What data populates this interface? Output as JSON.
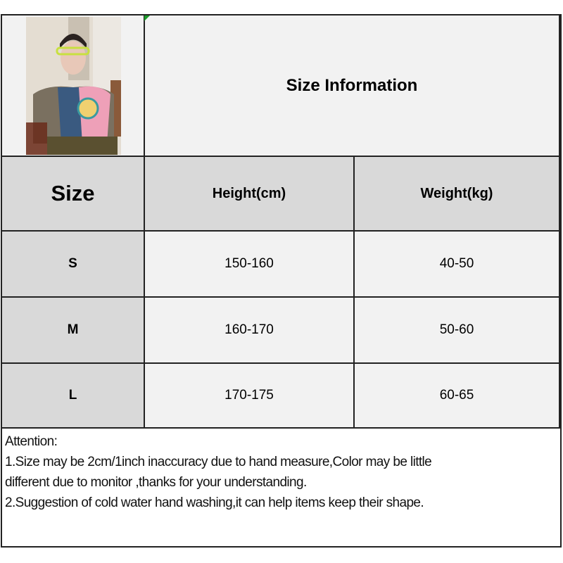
{
  "header": {
    "title": "Size Information",
    "photo_alt": "model wearing patchwork t-shirt"
  },
  "columns": [
    "Size",
    "Height(cm)",
    "Weight(kg)"
  ],
  "rows": [
    {
      "size": "S",
      "height": "150-160",
      "weight": "40-50"
    },
    {
      "size": "M",
      "height": "160-170",
      "weight": "50-60"
    },
    {
      "size": "L",
      "height": "170-175",
      "weight": "60-65"
    }
  ],
  "notes": {
    "heading": "Attention:",
    "line1": "1.Size may be 2cm/1inch inaccuracy due to hand measure,Color may be little",
    "line2": "different due to monitor ,thanks for your understanding.",
    "line3": "2.Suggestion of cold water hand washing,it can help items keep their shape."
  },
  "colors": {
    "header_bg": "#d9d9d9",
    "cell_bg": "#f2f2f2",
    "border": "#222222"
  }
}
